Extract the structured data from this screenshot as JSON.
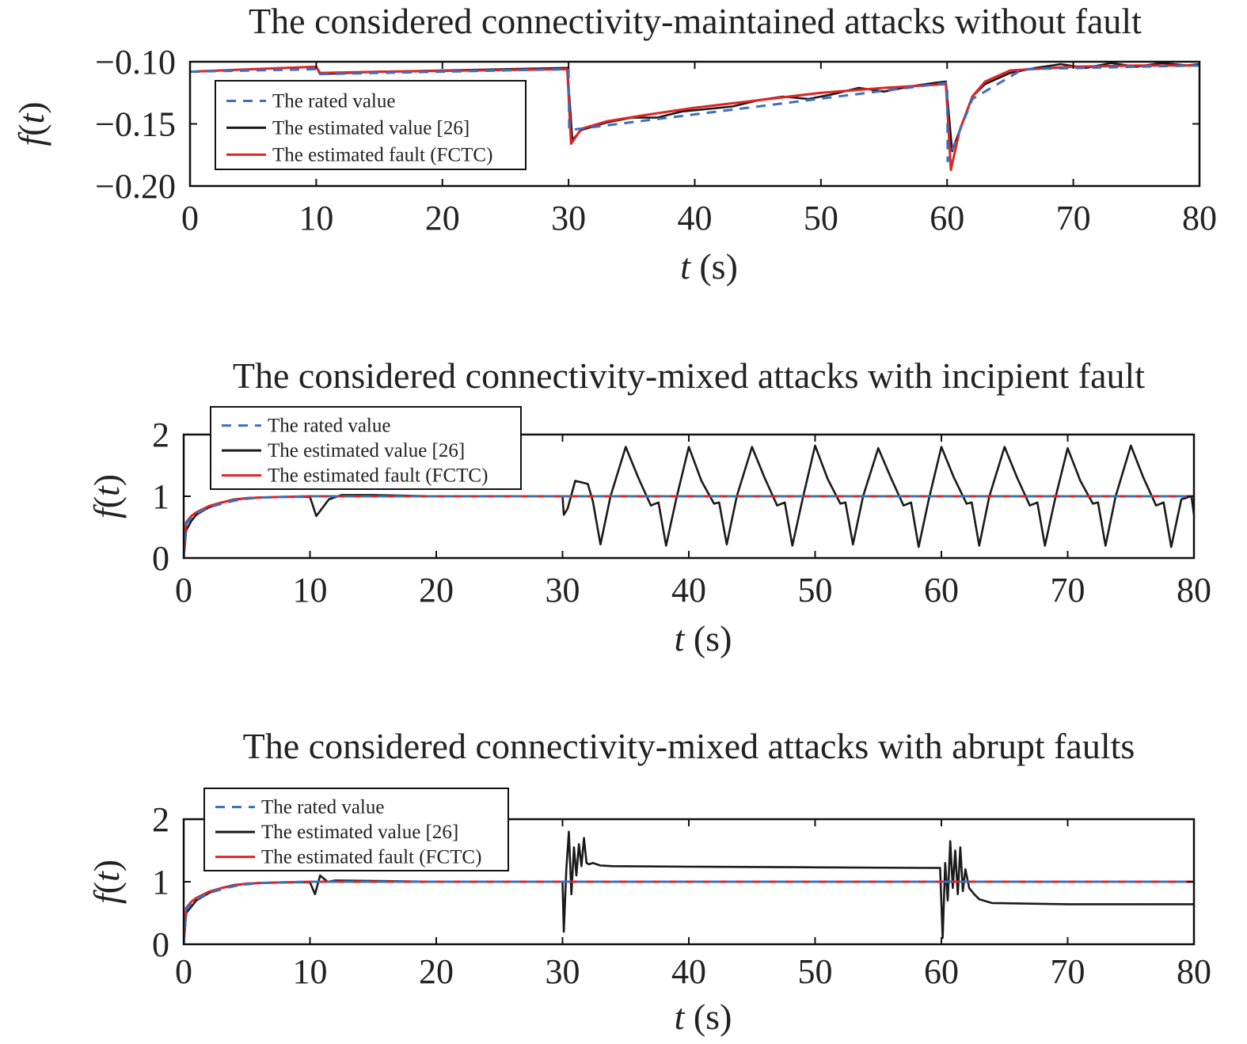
{
  "colors": {
    "rated": "#3a6fc4",
    "estimated": "#1a1a1a",
    "fault": "#e02424"
  },
  "chart_data": [
    {
      "type": "line",
      "title": "The considered connectivity-maintained attacks without fault",
      "xlabel_var": "t",
      "xlabel_unit": " (s)",
      "ylabel_f": "f",
      "ylabel_open": "(",
      "ylabel_var": "t",
      "ylabel_close": ")",
      "xlim": [
        0,
        80
      ],
      "ylim": [
        -0.2,
        -0.1
      ],
      "x_ticks": [
        0,
        10,
        20,
        30,
        40,
        50,
        60,
        70,
        80
      ],
      "x_tick_labels": [
        "0",
        "10",
        "20",
        "30",
        "40",
        "50",
        "60",
        "70",
        "80"
      ],
      "y_ticks": [
        -0.2,
        -0.15,
        -0.1
      ],
      "y_tick_labels": [
        "−0.20",
        "−0.15",
        "−0.10"
      ],
      "legend_position": "top-left",
      "series": [
        {
          "name": "The rated value",
          "style": "dashed",
          "x": [
            0,
            10,
            10.1,
            30,
            30.05,
            60,
            60.05,
            62,
            66,
            80
          ],
          "y": [
            -0.108,
            -0.106,
            -0.11,
            -0.106,
            -0.155,
            -0.117,
            -0.18,
            -0.13,
            -0.106,
            -0.103
          ]
        },
        {
          "name": "The estimated value [26]",
          "style": "solid",
          "x": [
            0,
            5,
            10,
            10.3,
            15,
            29.9,
            30.3,
            31,
            33,
            35,
            37,
            39,
            41,
            43,
            45,
            47,
            49,
            51,
            53,
            55,
            57,
            59,
            59.9,
            60.4,
            61,
            62,
            63,
            65,
            67,
            69,
            71,
            73,
            75,
            77,
            79,
            80
          ],
          "y": [
            -0.108,
            -0.106,
            -0.104,
            -0.11,
            -0.108,
            -0.105,
            -0.163,
            -0.155,
            -0.149,
            -0.145,
            -0.145,
            -0.14,
            -0.138,
            -0.136,
            -0.131,
            -0.128,
            -0.13,
            -0.126,
            -0.121,
            -0.124,
            -0.12,
            -0.117,
            -0.116,
            -0.172,
            -0.155,
            -0.128,
            -0.118,
            -0.109,
            -0.105,
            -0.102,
            -0.105,
            -0.101,
            -0.104,
            -0.101,
            -0.103,
            -0.102
          ]
        },
        {
          "name": "The estimated fault (FCTC)",
          "style": "solid",
          "x": [
            0,
            5,
            10,
            10.3,
            15,
            29.9,
            30.2,
            31,
            33,
            36,
            40,
            45,
            50,
            55,
            59.9,
            60.3,
            61,
            62,
            63,
            65,
            70,
            75,
            80
          ],
          "y": [
            -0.108,
            -0.106,
            -0.104,
            -0.109,
            -0.108,
            -0.106,
            -0.166,
            -0.154,
            -0.148,
            -0.143,
            -0.137,
            -0.131,
            -0.125,
            -0.121,
            -0.118,
            -0.187,
            -0.155,
            -0.128,
            -0.116,
            -0.107,
            -0.104,
            -0.103,
            -0.103
          ]
        }
      ]
    },
    {
      "type": "line",
      "title": "The considered connectivity-mixed attacks with incipient fault",
      "xlabel_var": "t",
      "xlabel_unit": " (s)",
      "ylabel_f": "f",
      "ylabel_open": "(",
      "ylabel_var": "t",
      "ylabel_close": ")",
      "xlim": [
        0,
        80
      ],
      "ylim": [
        0,
        2
      ],
      "x_ticks": [
        0,
        10,
        20,
        30,
        40,
        50,
        60,
        70,
        80
      ],
      "x_tick_labels": [
        "0",
        "10",
        "20",
        "30",
        "40",
        "50",
        "60",
        "70",
        "80"
      ],
      "y_ticks": [
        0,
        1,
        2
      ],
      "y_tick_labels": [
        "0",
        "1",
        "2"
      ],
      "legend_position": "top-left",
      "series": [
        {
          "name": "The rated value",
          "style": "dashed",
          "x": [
            0,
            0.2,
            0.6,
            1,
            2,
            3,
            4,
            5,
            6,
            8,
            10,
            80
          ],
          "y": [
            0,
            0.55,
            0.65,
            0.72,
            0.82,
            0.88,
            0.93,
            0.96,
            0.98,
            0.99,
            1,
            1
          ]
        },
        {
          "name": "The estimated value [26]",
          "style": "solid",
          "x": [
            0,
            0.2,
            0.6,
            1,
            2,
            3,
            4,
            5,
            6,
            8,
            10,
            10.5,
            11.5,
            12.5,
            15,
            20,
            25,
            30,
            30.1,
            30.4,
            31,
            32,
            32.4,
            33,
            33.8,
            35,
            36,
            37,
            37.6,
            38.2,
            39,
            40,
            41,
            42,
            42.4,
            43,
            43.8,
            45,
            46,
            47,
            47.6,
            48.2,
            49,
            50,
            51,
            52,
            52.4,
            53,
            53.8,
            55,
            56,
            57,
            57.6,
            58.2,
            59,
            60,
            61,
            62,
            62.4,
            63,
            63.8,
            65,
            66,
            67,
            67.6,
            68.2,
            69,
            70,
            71,
            72,
            72.4,
            73,
            73.8,
            75,
            76,
            77,
            77.6,
            78.2,
            79,
            79.8,
            80
          ],
          "y": [
            0,
            0.45,
            0.6,
            0.7,
            0.82,
            0.9,
            0.95,
            0.97,
            0.98,
            0.99,
            0.99,
            0.68,
            0.95,
            1.02,
            1.02,
            1.0,
            1.0,
            1.0,
            0.7,
            0.8,
            1.25,
            1.2,
            0.92,
            0.22,
            1.0,
            1.8,
            1.3,
            0.85,
            0.9,
            0.2,
            0.95,
            1.8,
            1.25,
            0.88,
            0.9,
            0.22,
            1.0,
            1.8,
            1.3,
            0.85,
            0.9,
            0.2,
            0.95,
            1.82,
            1.28,
            0.88,
            0.9,
            0.22,
            1.0,
            1.78,
            1.3,
            0.85,
            0.9,
            0.18,
            0.95,
            1.8,
            1.3,
            0.88,
            0.9,
            0.2,
            1.0,
            1.8,
            1.3,
            0.85,
            0.9,
            0.2,
            0.95,
            1.78,
            1.25,
            0.88,
            0.9,
            0.2,
            1.0,
            1.82,
            1.3,
            0.85,
            0.9,
            0.18,
            0.95,
            1.0,
            0.7
          ]
        },
        {
          "name": "The estimated fault (FCTC)",
          "style": "solid",
          "x": [
            0,
            0.2,
            0.6,
            1,
            2,
            3,
            4,
            5,
            6,
            8,
            10,
            80
          ],
          "y": [
            0,
            0.58,
            0.68,
            0.74,
            0.84,
            0.9,
            0.94,
            0.97,
            0.98,
            0.99,
            1,
            1
          ]
        }
      ]
    },
    {
      "type": "line",
      "title": "The considered connectivity-mixed attacks with abrupt faults",
      "xlabel_var": "t",
      "xlabel_unit": " (s)",
      "ylabel_f": "f",
      "ylabel_open": "(",
      "ylabel_var": "t",
      "ylabel_close": ")",
      "xlim": [
        0,
        80
      ],
      "ylim": [
        0,
        2
      ],
      "x_ticks": [
        0,
        10,
        20,
        30,
        40,
        50,
        60,
        70,
        80
      ],
      "x_tick_labels": [
        "0",
        "10",
        "20",
        "30",
        "40",
        "50",
        "60",
        "70",
        "80"
      ],
      "y_ticks": [
        0,
        1,
        2
      ],
      "y_tick_labels": [
        "0",
        "1",
        "2"
      ],
      "legend_position": "top-left",
      "series": [
        {
          "name": "The rated value",
          "style": "dashed",
          "x": [
            0,
            0.2,
            0.6,
            1,
            2,
            3,
            4,
            5,
            6,
            8,
            10,
            80
          ],
          "y": [
            0,
            0.55,
            0.65,
            0.72,
            0.82,
            0.88,
            0.93,
            0.96,
            0.98,
            0.99,
            1,
            1
          ]
        },
        {
          "name": "The estimated value [26]",
          "style": "solid",
          "x": [
            0,
            0.2,
            0.6,
            1,
            2,
            3,
            4,
            5,
            6,
            8,
            10,
            10.4,
            10.8,
            11.4,
            12,
            20,
            30,
            30.1,
            30.3,
            30.5,
            30.7,
            30.9,
            31.1,
            31.3,
            31.5,
            31.7,
            31.9,
            32.1,
            32.4,
            33,
            34,
            40,
            50,
            59.9,
            60.1,
            60.3,
            60.5,
            60.7,
            60.9,
            61.1,
            61.3,
            61.5,
            61.7,
            61.9,
            62.2,
            62.6,
            63,
            64,
            70,
            80
          ],
          "y": [
            0,
            0.5,
            0.6,
            0.7,
            0.82,
            0.9,
            0.95,
            0.97,
            0.98,
            0.99,
            0.99,
            0.8,
            1.1,
            1.0,
            1.02,
            1.0,
            1.0,
            0.2,
            1.2,
            1.8,
            0.8,
            1.55,
            1.1,
            1.6,
            1.25,
            1.7,
            1.3,
            1.28,
            1.3,
            1.26,
            1.25,
            1.24,
            1.23,
            1.22,
            0.1,
            1.3,
            0.7,
            1.65,
            0.9,
            1.5,
            0.8,
            1.55,
            0.85,
            1.2,
            0.9,
            0.8,
            0.72,
            0.66,
            0.64,
            0.64
          ]
        },
        {
          "name": "The estimated fault (FCTC)",
          "style": "solid",
          "x": [
            0,
            0.2,
            0.6,
            1,
            2,
            3,
            4,
            5,
            6,
            8,
            10,
            80
          ],
          "y": [
            0,
            0.58,
            0.68,
            0.74,
            0.84,
            0.9,
            0.94,
            0.97,
            0.98,
            0.99,
            1,
            1
          ]
        }
      ]
    }
  ]
}
